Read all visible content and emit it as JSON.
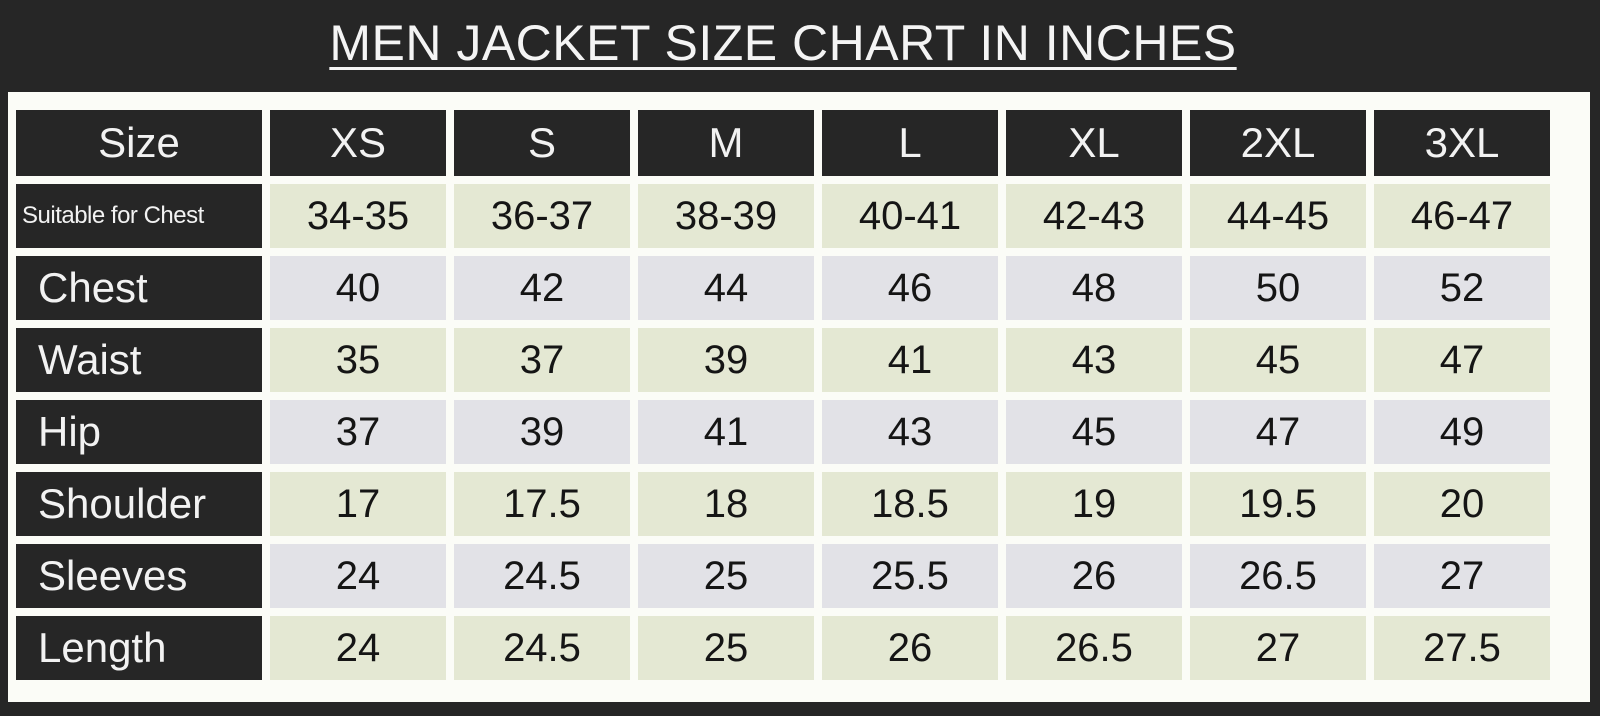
{
  "title": "MEN JACKET SIZE CHART IN INCHES",
  "colors": {
    "background": "#262626",
    "label_cell": "#262626",
    "row_green": "#e4e8d3",
    "row_grey": "#e2e2e7"
  },
  "chart_data": {
    "type": "table",
    "title": "MEN JACKET SIZE CHART IN INCHES",
    "corner_header": "Size",
    "columns": [
      "XS",
      "S",
      "M",
      "L",
      "XL",
      "2XL",
      "3XL"
    ],
    "rows": [
      {
        "label": "Suitable for Chest",
        "values": [
          "34-35",
          "36-37",
          "38-39",
          "40-41",
          "42-43",
          "44-45",
          "46-47"
        ]
      },
      {
        "label": "Chest",
        "values": [
          "40",
          "42",
          "44",
          "46",
          "48",
          "50",
          "52"
        ]
      },
      {
        "label": "Waist",
        "values": [
          "35",
          "37",
          "39",
          "41",
          "43",
          "45",
          "47"
        ]
      },
      {
        "label": "Hip",
        "values": [
          "37",
          "39",
          "41",
          "43",
          "45",
          "47",
          "49"
        ]
      },
      {
        "label": "Shoulder",
        "values": [
          "17",
          "17.5",
          "18",
          "18.5",
          "19",
          "19.5",
          "20"
        ]
      },
      {
        "label": "Sleeves",
        "values": [
          "24",
          "24.5",
          "25",
          "25.5",
          "26",
          "26.5",
          "27"
        ]
      },
      {
        "label": "Length",
        "values": [
          "24",
          "24.5",
          "25",
          "26",
          "26.5",
          "27",
          "27.5"
        ]
      }
    ]
  }
}
